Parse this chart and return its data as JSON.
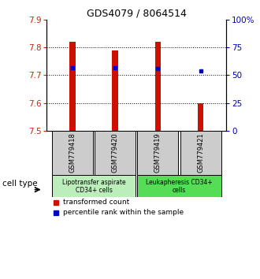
{
  "title": "GDS4079 / 8064514",
  "samples": [
    "GSM779418",
    "GSM779420",
    "GSM779419",
    "GSM779421"
  ],
  "red_bar_tops": [
    7.82,
    7.79,
    7.82,
    7.6
  ],
  "red_bar_bottom": 7.5,
  "blue_dot_values": [
    7.725,
    7.725,
    7.724,
    7.715
  ],
  "ylim": [
    7.5,
    7.9
  ],
  "yticks_left": [
    7.5,
    7.6,
    7.7,
    7.8,
    7.9
  ],
  "yticks_right": [
    0,
    25,
    50,
    75,
    100
  ],
  "ylabel_left_color": "#CC2200",
  "ylabel_right_color": "#0000BB",
  "bar_color": "#CC1100",
  "dot_color": "#0000CC",
  "cell_groups": [
    {
      "label": "Lipotransfer aspirate\nCD34+ cells",
      "samples": [
        0,
        1
      ],
      "color": "#BBEEBB"
    },
    {
      "label": "Leukapheresis CD34+\ncells",
      "samples": [
        2,
        3
      ],
      "color": "#55DD55"
    }
  ],
  "cell_type_label": "cell type",
  "legend_red_label": "transformed count",
  "legend_blue_label": "percentile rank within the sample",
  "background_color": "#ffffff",
  "sample_box_color": "#CCCCCC"
}
